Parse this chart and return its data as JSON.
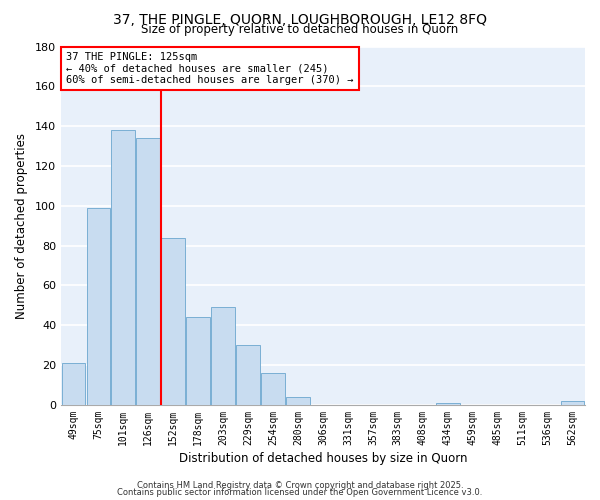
{
  "title": "37, THE PINGLE, QUORN, LOUGHBOROUGH, LE12 8FQ",
  "subtitle": "Size of property relative to detached houses in Quorn",
  "xlabel": "Distribution of detached houses by size in Quorn",
  "ylabel": "Number of detached properties",
  "bar_color": "#c8dcf0",
  "bar_edge_color": "#7aafd4",
  "background_color": "#e8f0fa",
  "grid_color": "white",
  "categories": [
    "49sqm",
    "75sqm",
    "101sqm",
    "126sqm",
    "152sqm",
    "178sqm",
    "203sqm",
    "229sqm",
    "254sqm",
    "280sqm",
    "306sqm",
    "331sqm",
    "357sqm",
    "383sqm",
    "408sqm",
    "434sqm",
    "459sqm",
    "485sqm",
    "511sqm",
    "536sqm",
    "562sqm"
  ],
  "values": [
    21,
    99,
    138,
    134,
    84,
    44,
    49,
    30,
    16,
    4,
    0,
    0,
    0,
    0,
    0,
    1,
    0,
    0,
    0,
    0,
    2
  ],
  "ylim": [
    0,
    180
  ],
  "yticks": [
    0,
    20,
    40,
    60,
    80,
    100,
    120,
    140,
    160,
    180
  ],
  "red_line_x": 3.5,
  "annotation_line1": "37 THE PINGLE: 125sqm",
  "annotation_line2": "← 40% of detached houses are smaller (245)",
  "annotation_line3": "60% of semi-detached houses are larger (370) →",
  "footnote1": "Contains HM Land Registry data © Crown copyright and database right 2025.",
  "footnote2": "Contains public sector information licensed under the Open Government Licence v3.0."
}
